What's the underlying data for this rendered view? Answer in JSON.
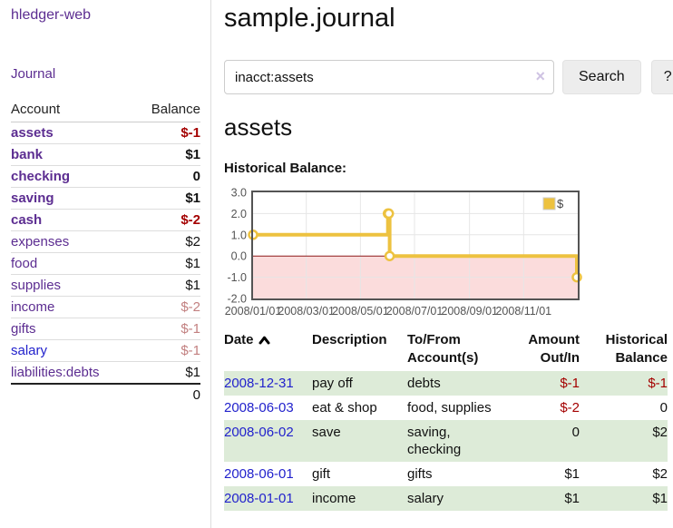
{
  "app": {
    "title": "hledger-web",
    "nav_journal": "Journal"
  },
  "sidebar": {
    "headers": [
      "Account",
      "Balance"
    ],
    "accounts": [
      {
        "name": "assets",
        "level": 1,
        "bold": true,
        "value": "$-1",
        "value_class": "neg",
        "link_class": ""
      },
      {
        "name": "bank",
        "level": 2,
        "bold": true,
        "value": "$1",
        "value_class": "",
        "link_class": ""
      },
      {
        "name": "checking",
        "level": 3,
        "bold": true,
        "value": "0",
        "value_class": "",
        "link_class": ""
      },
      {
        "name": "saving",
        "level": 3,
        "bold": true,
        "value": "$1",
        "value_class": "",
        "link_class": ""
      },
      {
        "name": "cash",
        "level": 2,
        "bold": true,
        "value": "$-2",
        "value_class": "neg",
        "link_class": ""
      },
      {
        "name": "expenses",
        "level": 1,
        "bold": false,
        "value": "$2",
        "value_class": "",
        "link_class": ""
      },
      {
        "name": "food",
        "level": 2,
        "bold": false,
        "value": "$1",
        "value_class": "",
        "link_class": ""
      },
      {
        "name": "supplies",
        "level": 2,
        "bold": false,
        "value": "$1",
        "value_class": "",
        "link_class": ""
      },
      {
        "name": "income",
        "level": 1,
        "bold": false,
        "value": "$-2",
        "value_class": "negmuted",
        "link_class": ""
      },
      {
        "name": "gifts",
        "level": 2,
        "bold": false,
        "value": "$-1",
        "value_class": "negmuted",
        "link_class": ""
      },
      {
        "name": "salary",
        "level": 2,
        "bold": false,
        "value": "$-1",
        "value_class": "negmuted",
        "link_class": "blue"
      },
      {
        "name": "liabilities:debts",
        "level": 1,
        "bold": false,
        "value": "$1",
        "value_class": "",
        "link_class": ""
      }
    ],
    "total": "0"
  },
  "main": {
    "title": "sample.journal",
    "search": {
      "value": "inacct:assets",
      "clear": "×",
      "button_label": "Search",
      "help_label": "?"
    },
    "heading": "assets",
    "chart_title": "Historical Balance:"
  },
  "chart_data": {
    "type": "line",
    "step": true,
    "title": "Historical Balance:",
    "series": [
      {
        "name": "$",
        "color": "#edc240",
        "points": [
          [
            "2008-01-01",
            1
          ],
          [
            "2008-06-01",
            2
          ],
          [
            "2008-06-02",
            2
          ],
          [
            "2008-06-03",
            0
          ],
          [
            "2008-12-31",
            -1
          ]
        ]
      }
    ],
    "x_range": [
      "2008-01-01",
      "2009-01-01"
    ],
    "y_range": [
      -2,
      3
    ],
    "x_ticks": [
      "2008/01/01",
      "2008/03/01",
      "2008/05/01",
      "2008/07/01",
      "2008/09/01",
      "2008/11/01"
    ],
    "y_ticks": [
      "3.0",
      "2.0",
      "1.0",
      "0.0",
      "-1.0",
      "-2.0"
    ],
    "legend": {
      "label": "$",
      "position": "top-right"
    },
    "grid": true,
    "negative_fill": "#fbdcdc",
    "zero_line_color": "#8e1b1b",
    "border_color": "#545454",
    "grid_color": "#e6e6e6",
    "tick_color": "#545454"
  },
  "register": {
    "columns": [
      "Date",
      "Description",
      "To/From Account(s)",
      "Amount Out/In",
      "Historical Balance"
    ],
    "sort_icon": "chevron-up",
    "rows": [
      {
        "date": "2008-12-31",
        "description": "pay off",
        "accounts": "debts",
        "amount": "$-1",
        "amount_negative": true,
        "balance": "$-1",
        "balance_negative": true,
        "shaded": true
      },
      {
        "date": "2008-06-03",
        "description": "eat & shop",
        "accounts": "food, supplies",
        "amount": "$-2",
        "amount_negative": true,
        "balance": "0",
        "balance_negative": false,
        "shaded": false
      },
      {
        "date": "2008-06-02",
        "description": "save",
        "accounts": "saving, checking",
        "amount": "0",
        "amount_negative": false,
        "balance": "$2",
        "balance_negative": false,
        "shaded": true
      },
      {
        "date": "2008-06-01",
        "description": "gift",
        "accounts": "gifts",
        "amount": "$1",
        "amount_negative": false,
        "balance": "$2",
        "balance_negative": false,
        "shaded": false
      },
      {
        "date": "2008-01-01",
        "description": "income",
        "accounts": "salary",
        "amount": "$1",
        "amount_negative": false,
        "balance": "$1",
        "balance_negative": false,
        "shaded": true
      }
    ]
  },
  "colors": {
    "link_purple": "#5c2d91",
    "link_blue": "#2222cc",
    "negative_strong": "#a40000",
    "negative_muted": "#c28080",
    "row_shade_green": "#ddebd8",
    "accent_yellow": "#edc240"
  }
}
